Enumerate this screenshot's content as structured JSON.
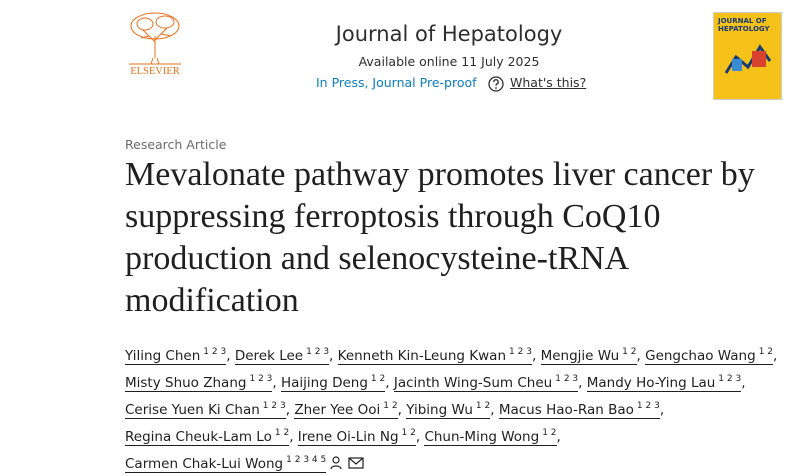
{
  "header": {
    "publisher": "ELSEVIER",
    "journal": "Journal of Hepatology",
    "available": "Available online 11 July 2025",
    "status": "In Press, Journal Pre-proof",
    "help": "What's this?",
    "cover_title": "JOURNAL OF HEPATOLOGY"
  },
  "article": {
    "type": "Research Article",
    "title": "Mevalonate pathway promotes liver cancer by suppressing ferroptosis through CoQ10 production and selenocysteine-tRNA modification"
  },
  "authors": {
    "separator": ",",
    "lines": [
      [
        {
          "name": "Yiling Chen",
          "affiliations": [
            "1",
            "2",
            "3"
          ]
        },
        {
          "name": "Derek Lee",
          "affiliations": [
            "1",
            "2",
            "3"
          ]
        },
        {
          "name": "Kenneth Kin-Leung Kwan",
          "affiliations": [
            "1",
            "2",
            "3"
          ]
        },
        {
          "name": "Mengjie Wu",
          "affiliations": [
            "1",
            "2"
          ]
        },
        {
          "name": "Gengchao Wang",
          "affiliations": [
            "1",
            "2"
          ]
        }
      ],
      [
        {
          "name": "Misty Shuo Zhang",
          "affiliations": [
            "1",
            "2",
            "3"
          ]
        },
        {
          "name": "Haijing Deng",
          "affiliations": [
            "1",
            "2"
          ]
        },
        {
          "name": "Jacinth Wing-Sum Cheu",
          "affiliations": [
            "1",
            "2",
            "3"
          ]
        },
        {
          "name": "Mandy Ho-Ying Lau",
          "affiliations": [
            "1",
            "2",
            "3"
          ]
        }
      ],
      [
        {
          "name": "Cerise Yuen Ki Chan",
          "affiliations": [
            "1",
            "2",
            "3"
          ]
        },
        {
          "name": "Zher Yee Ooi",
          "affiliations": [
            "1",
            "2"
          ]
        },
        {
          "name": "Yibing Wu",
          "affiliations": [
            "1",
            "2"
          ]
        },
        {
          "name": "Macus Hao-Ran Bao",
          "affiliations": [
            "1",
            "2",
            "3"
          ]
        }
      ],
      [
        {
          "name": "Regina Cheuk-Lam Lo",
          "affiliations": [
            "1",
            "2"
          ]
        },
        {
          "name": "Irene Oi-Lin Ng",
          "affiliations": [
            "1",
            "2"
          ]
        },
        {
          "name": "Chun-Ming Wong",
          "affiliations": [
            "1",
            "2"
          ]
        }
      ],
      [
        {
          "name": "Carmen Chak-Lui Wong",
          "affiliations": [
            "1",
            "2",
            "3",
            "4",
            "5"
          ]
        }
      ]
    ]
  }
}
